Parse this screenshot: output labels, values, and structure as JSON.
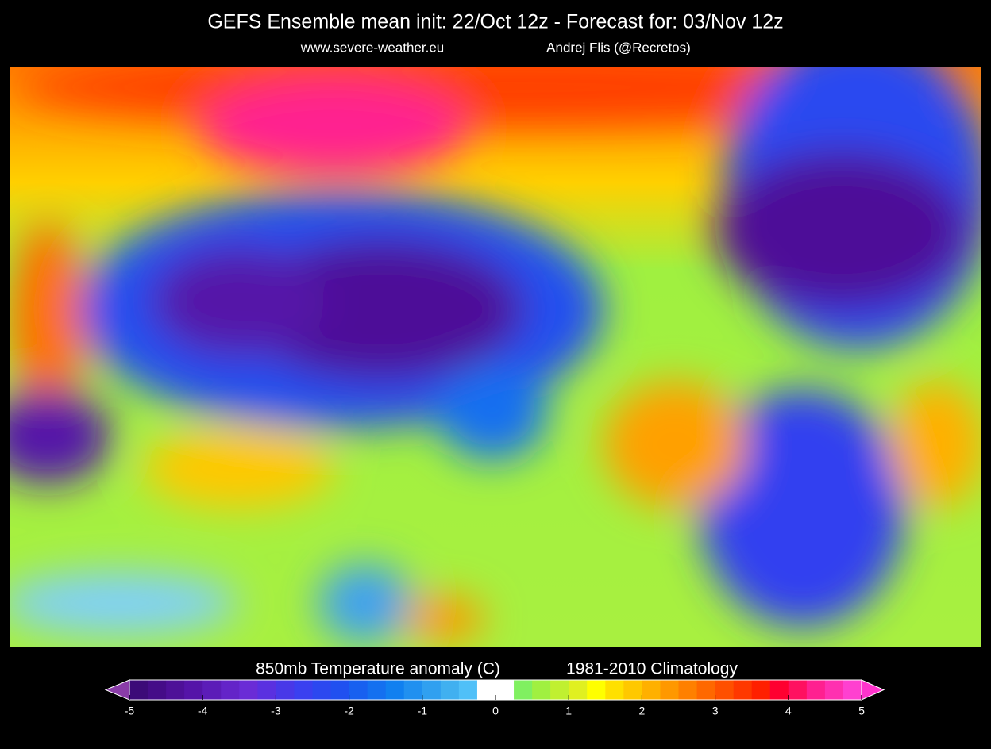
{
  "header": {
    "title": "GEFS Ensemble mean  init: 22/Oct 12z -  Forecast for: 03/Nov 12z",
    "website": "www.severe-weather.eu",
    "author": "Andrej Flis (@Recretos)"
  },
  "colorbar": {
    "label": "850mb Temperature anomaly (C)",
    "climatology": "1981-2010 Climatology",
    "range": [
      -5,
      5
    ],
    "ticks": [
      -5,
      -4,
      -3,
      -2,
      -1,
      0,
      1,
      2,
      3,
      4,
      5
    ],
    "under_color": "#8a3ca8",
    "over_color": "#ff33cc",
    "colors": [
      "#3c0a78",
      "#450c88",
      "#4e1098",
      "#5514a8",
      "#5c1cb8",
      "#6424c8",
      "#6a2cd6",
      "#5a30e0",
      "#4838e8",
      "#3a40f0",
      "#2c48f0",
      "#2050f0",
      "#1860f0",
      "#1470f0",
      "#1080f0",
      "#2090f0",
      "#30a0f0",
      "#40b0f0",
      "#50c0f8",
      "#ffffff",
      "#ffffff",
      "#80f060",
      "#a0f040",
      "#c0f030",
      "#e0f020",
      "#ffff00",
      "#ffe000",
      "#ffc800",
      "#ffb000",
      "#ff9800",
      "#ff8000",
      "#ff6800",
      "#ff5000",
      "#ff3800",
      "#ff2000",
      "#ff0030",
      "#ff1060",
      "#ff2090",
      "#ff30b0",
      "#ff40d0"
    ]
  }
}
